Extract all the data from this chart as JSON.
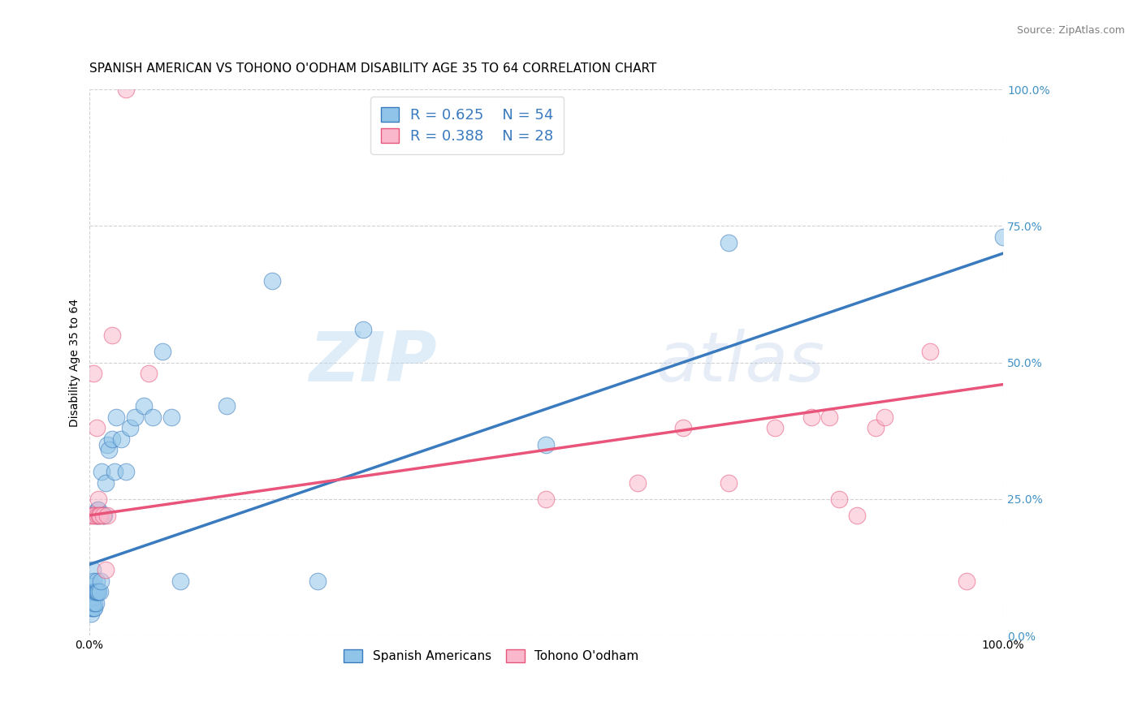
{
  "title": "SPANISH AMERICAN VS TOHONO O'ODHAM DISABILITY AGE 35 TO 64 CORRELATION CHART",
  "source": "Source: ZipAtlas.com",
  "ylabel": "Disability Age 35 to 64",
  "xlim": [
    0.0,
    1.0
  ],
  "ylim": [
    0.0,
    1.0
  ],
  "ytick_positions": [
    0.0,
    0.25,
    0.5,
    0.75,
    1.0
  ],
  "watermark_part1": "ZIP",
  "watermark_part2": "atlas",
  "blue_R": 0.625,
  "blue_N": 54,
  "pink_R": 0.388,
  "pink_N": 28,
  "blue_scatter_color": "#90c4e8",
  "pink_scatter_color": "#f9b8cb",
  "blue_line_color": "#3a7bbf",
  "pink_line_color": "#e8547a",
  "legend_label_blue": "Spanish Americans",
  "legend_label_pink": "Tohono O'odham",
  "blue_scatter_x": [
    0.001,
    0.001,
    0.002,
    0.002,
    0.003,
    0.003,
    0.003,
    0.004,
    0.004,
    0.004,
    0.005,
    0.005,
    0.005,
    0.006,
    0.006,
    0.006,
    0.007,
    0.007,
    0.007,
    0.008,
    0.008,
    0.008,
    0.009,
    0.009,
    0.01,
    0.01,
    0.011,
    0.012,
    0.013,
    0.014,
    0.015,
    0.016,
    0.018,
    0.02,
    0.022,
    0.025,
    0.028,
    0.03,
    0.035,
    0.04,
    0.045,
    0.05,
    0.06,
    0.07,
    0.08,
    0.09,
    0.1,
    0.15,
    0.2,
    0.25,
    0.3,
    0.5,
    0.7,
    1.0
  ],
  "blue_scatter_y": [
    0.05,
    0.07,
    0.04,
    0.06,
    0.05,
    0.06,
    0.08,
    0.06,
    0.09,
    0.12,
    0.05,
    0.07,
    0.1,
    0.05,
    0.06,
    0.08,
    0.06,
    0.08,
    0.22,
    0.08,
    0.1,
    0.22,
    0.08,
    0.23,
    0.08,
    0.23,
    0.22,
    0.08,
    0.1,
    0.3,
    0.22,
    0.22,
    0.28,
    0.35,
    0.34,
    0.36,
    0.3,
    0.4,
    0.36,
    0.3,
    0.38,
    0.4,
    0.42,
    0.4,
    0.52,
    0.4,
    0.1,
    0.42,
    0.65,
    0.1,
    0.56,
    0.35,
    0.72,
    0.73
  ],
  "pink_scatter_x": [
    0.002,
    0.004,
    0.005,
    0.006,
    0.008,
    0.009,
    0.01,
    0.011,
    0.012,
    0.015,
    0.018,
    0.02,
    0.025,
    0.04,
    0.065,
    0.5,
    0.6,
    0.65,
    0.7,
    0.75,
    0.79,
    0.81,
    0.82,
    0.84,
    0.86,
    0.87,
    0.92,
    0.96
  ],
  "pink_scatter_y": [
    0.22,
    0.22,
    0.48,
    0.22,
    0.38,
    0.22,
    0.25,
    0.22,
    0.22,
    0.22,
    0.12,
    0.22,
    0.55,
    1.0,
    0.48,
    0.25,
    0.28,
    0.38,
    0.28,
    0.38,
    0.4,
    0.4,
    0.25,
    0.22,
    0.38,
    0.4,
    0.52,
    0.1
  ],
  "blue_line_x": [
    0.0,
    1.0
  ],
  "blue_line_y": [
    0.13,
    0.7
  ],
  "pink_line_x": [
    0.0,
    1.0
  ],
  "pink_line_y": [
    0.22,
    0.46
  ],
  "title_fontsize": 11,
  "axis_label_fontsize": 10,
  "tick_fontsize": 10,
  "right_tick_color": "#4292c6",
  "background_color": "#ffffff",
  "grid_color": "#cccccc"
}
